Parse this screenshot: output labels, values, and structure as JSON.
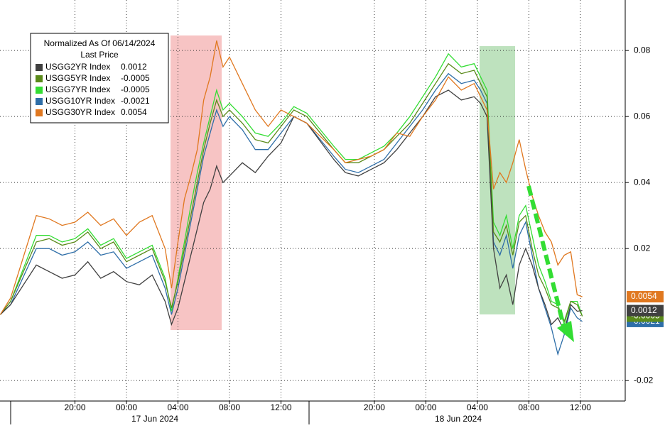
{
  "chart_data": {
    "type": "line",
    "legend_title": "Normalized As Of 06/14/2024",
    "legend_subtitle": "Last Price",
    "x_date_labels": [
      "17 Jun 2024",
      "18 Jun 2024"
    ],
    "x": [
      -9.8,
      -9,
      -7,
      -6,
      -5,
      -4,
      -3,
      -2,
      -1,
      0,
      1,
      2,
      3,
      3.5,
      4,
      4.5,
      5,
      5.5,
      6,
      6.5,
      7,
      7.5,
      8,
      9,
      10,
      11,
      12,
      13,
      14,
      16.1,
      17,
      18,
      19,
      20,
      21,
      22,
      23,
      24,
      25,
      26,
      27,
      27.5,
      28,
      28.5,
      29,
      29.5,
      30,
      30.5,
      31,
      31.5,
      32,
      32.5,
      33,
      33.5,
      34,
      34.5,
      35,
      35.4
    ],
    "series": [
      {
        "name": "USGG2YR Index",
        "color": "#404040",
        "values": [
          0,
          0.003,
          0.015,
          0.013,
          0.011,
          0.012,
          0.016,
          0.011,
          0.013,
          0.01,
          0.009,
          0.012,
          0.004,
          -0.003,
          0.002,
          0.01,
          0.018,
          0.026,
          0.034,
          0.038,
          0.045,
          0.04,
          0.042,
          0.046,
          0.043,
          0.048,
          0.052,
          0.06,
          0.058,
          0.047,
          0.043,
          0.042,
          0.044,
          0.046,
          0.05,
          0.055,
          0.06,
          0.066,
          0.068,
          0.065,
          0.066,
          0.064,
          0.06,
          0.02,
          0.008,
          0.012,
          0.003,
          0.015,
          0.02,
          0.015,
          0.008,
          0.003,
          -0.003,
          -0.001,
          -0.005,
          0.003,
          0.001,
          0.0012
        ]
      },
      {
        "name": "USGG5YR Index",
        "color": "#5a8a1a",
        "values": [
          0,
          0.004,
          0.022,
          0.023,
          0.021,
          0.022,
          0.025,
          0.02,
          0.022,
          0.016,
          0.018,
          0.02,
          0.01,
          0.002,
          0.01,
          0.02,
          0.03,
          0.04,
          0.05,
          0.058,
          0.065,
          0.06,
          0.062,
          0.058,
          0.053,
          0.052,
          0.057,
          0.062,
          0.06,
          0.05,
          0.046,
          0.046,
          0.048,
          0.05,
          0.054,
          0.058,
          0.064,
          0.07,
          0.076,
          0.073,
          0.074,
          0.07,
          0.066,
          0.025,
          0.022,
          0.027,
          0.018,
          0.028,
          0.03,
          0.02,
          0.012,
          0.008,
          0.003,
          0.002,
          -0.002,
          0.004,
          0.003,
          -0.0005
        ]
      },
      {
        "name": "USGG7YR Index",
        "color": "#33dd33",
        "values": [
          0,
          0.004,
          0.024,
          0.024,
          0.022,
          0.023,
          0.026,
          0.021,
          0.023,
          0.017,
          0.019,
          0.021,
          0.011,
          0.001,
          0.011,
          0.022,
          0.033,
          0.043,
          0.052,
          0.06,
          0.068,
          0.062,
          0.064,
          0.06,
          0.055,
          0.054,
          0.058,
          0.063,
          0.061,
          0.051,
          0.047,
          0.047,
          0.049,
          0.051,
          0.055,
          0.06,
          0.066,
          0.072,
          0.079,
          0.075,
          0.076,
          0.072,
          0.068,
          0.028,
          0.024,
          0.03,
          0.02,
          0.03,
          0.033,
          0.024,
          0.015,
          0.01,
          0.004,
          0.003,
          -0.003,
          0.004,
          0.004,
          -0.0005
        ]
      },
      {
        "name": "USGG10YR Index",
        "color": "#2e6ea8",
        "values": [
          0,
          0.003,
          0.02,
          0.02,
          0.018,
          0.019,
          0.022,
          0.018,
          0.019,
          0.014,
          0.016,
          0.018,
          0.008,
          0,
          0.008,
          0.018,
          0.028,
          0.038,
          0.048,
          0.055,
          0.062,
          0.057,
          0.06,
          0.056,
          0.05,
          0.05,
          0.055,
          0.06,
          0.058,
          0.048,
          0.044,
          0.043,
          0.045,
          0.047,
          0.052,
          0.057,
          0.062,
          0.068,
          0.073,
          0.07,
          0.071,
          0.068,
          0.064,
          0.022,
          0.018,
          0.024,
          0.014,
          0.024,
          0.028,
          0.018,
          0.008,
          0.002,
          -0.004,
          -0.012,
          -0.006,
          0.002,
          -0.001,
          -0.0021
        ]
      },
      {
        "name": "USGG30YR Index",
        "color": "#e07820",
        "values": [
          0,
          0.005,
          0.03,
          0.029,
          0.027,
          0.028,
          0.031,
          0.027,
          0.029,
          0.024,
          0.028,
          0.03,
          0.02,
          0.008,
          0.022,
          0.035,
          0.042,
          0.05,
          0.065,
          0.072,
          0.083,
          0.075,
          0.078,
          0.07,
          0.062,
          0.057,
          0.062,
          0.06,
          0.058,
          0.05,
          0.046,
          0.047,
          0.048,
          0.05,
          0.055,
          0.054,
          0.06,
          0.065,
          0.072,
          0.068,
          0.07,
          0.066,
          0.062,
          0.038,
          0.043,
          0.04,
          0.046,
          0.053,
          0.044,
          0.036,
          0.03,
          0.025,
          0.022,
          0.015,
          0.018,
          0.019,
          0.006,
          0.0054
        ]
      }
    ],
    "xlim": [
      -9.82,
      38.73
    ],
    "xticks": [
      {
        "value": -4,
        "label": "20:00"
      },
      {
        "value": 0,
        "label": "00:00"
      },
      {
        "value": 4,
        "label": "04:00"
      },
      {
        "value": 8,
        "label": "08:00"
      },
      {
        "value": 12,
        "label": "12:00"
      },
      {
        "value": 19.25,
        "label": "20:00"
      },
      {
        "value": 23.25,
        "label": "00:00"
      },
      {
        "value": 27.25,
        "label": "04:00"
      },
      {
        "value": 31.25,
        "label": "08:00"
      },
      {
        "value": 35.25,
        "label": "12:00"
      }
    ],
    "ylim": [
      -0.0262,
      0.0953
    ],
    "yticks": [
      -0.02,
      0.02,
      0.04,
      0.06,
      0.08
    ],
    "grid": true
  }
}
